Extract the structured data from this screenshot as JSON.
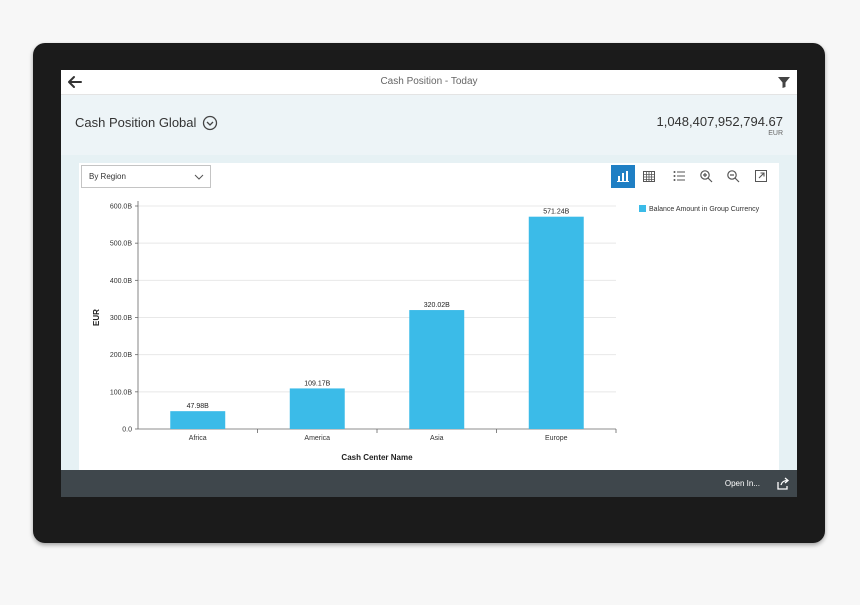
{
  "app": {
    "title": "Cash Position - Today",
    "header_title": "Cash Position Global",
    "amount": "1,048,407,952,794.67",
    "currency": "EUR"
  },
  "controls": {
    "view_select": "By Region"
  },
  "toolbar_icons": [
    "bar-chart-icon",
    "table-icon",
    "list-icon",
    "zoom-in-icon",
    "zoom-out-icon",
    "fullscreen-icon"
  ],
  "footer": {
    "open_in": "Open In..."
  },
  "colors": {
    "bar": "#3bbbe8",
    "active_button": "#1f7fc4",
    "footer": "#3f474c"
  },
  "chart_data": {
    "type": "bar",
    "categories": [
      "Africa",
      "America",
      "Asia",
      "Europe"
    ],
    "series": [
      {
        "name": "Balance Amount in Group Currency",
        "values": [
          47.98,
          109.17,
          320.02,
          571.24
        ]
      }
    ],
    "data_labels": [
      "47.98B",
      "109.17B",
      "320.02B",
      "571.24B"
    ],
    "yticks": [
      "0.0",
      "100.0B",
      "200.0B",
      "300.0B",
      "400.0B",
      "500.0B",
      "600.0B"
    ],
    "ytick_values": [
      0,
      100,
      200,
      300,
      400,
      500,
      600
    ],
    "ylim": [
      0,
      600
    ],
    "xlabel": "Cash Center Name",
    "ylabel": "EUR",
    "legend_position": "top-right",
    "grid": true
  }
}
